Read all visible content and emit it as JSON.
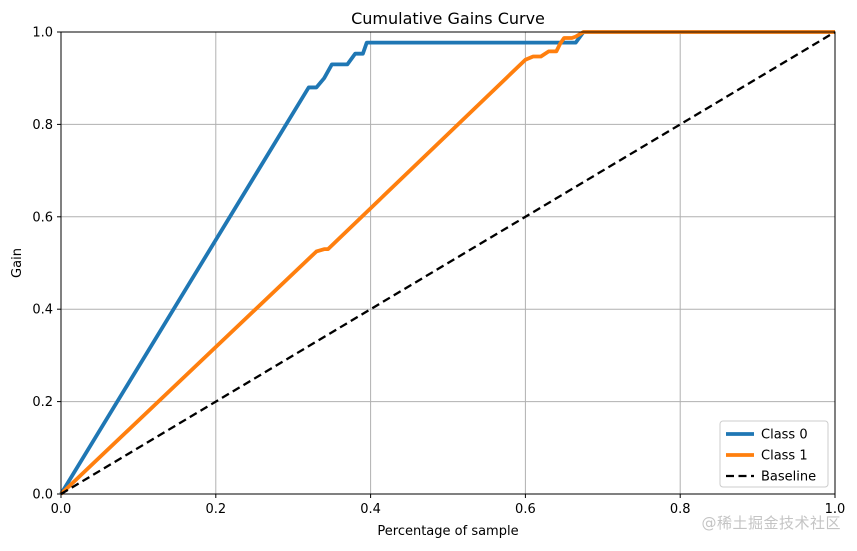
{
  "chart_data": {
    "type": "line",
    "title": "Cumulative Gains Curve",
    "xlabel": "Percentage of sample",
    "ylabel": "Gain",
    "xlim": [
      0.0,
      1.0
    ],
    "ylim": [
      0.0,
      1.0
    ],
    "xticks": [
      0.0,
      0.2,
      0.4,
      0.6,
      0.8,
      1.0
    ],
    "xtick_labels": [
      "0.0",
      "0.2",
      "0.4",
      "0.6",
      "0.8",
      "1.0"
    ],
    "yticks": [
      0.0,
      0.2,
      0.4,
      0.6,
      0.8,
      1.0
    ],
    "ytick_labels": [
      "0.0",
      "0.2",
      "0.4",
      "0.6",
      "0.8",
      "1.0"
    ],
    "grid": true,
    "legend_position": "bottom-right",
    "series": [
      {
        "name": "Class 0",
        "color": "#1f77b4",
        "style": "solid",
        "x": [
          0.0,
          0.32,
          0.33,
          0.34,
          0.35,
          0.37,
          0.38,
          0.39,
          0.395,
          0.4,
          0.665,
          0.675,
          0.69,
          1.0
        ],
        "y": [
          0.0,
          0.88,
          0.88,
          0.9,
          0.93,
          0.93,
          0.953,
          0.953,
          0.977,
          0.977,
          0.977,
          1.0,
          1.0,
          1.0
        ]
      },
      {
        "name": "Class 1",
        "color": "#ff7f0e",
        "style": "solid",
        "x": [
          0.0,
          0.33,
          0.34,
          0.345,
          0.6,
          0.61,
          0.62,
          0.63,
          0.64,
          0.645,
          0.65,
          0.66,
          0.665,
          0.675,
          1.0
        ],
        "y": [
          0.0,
          0.525,
          0.53,
          0.53,
          0.94,
          0.947,
          0.947,
          0.958,
          0.958,
          0.975,
          0.987,
          0.987,
          0.99,
          1.0,
          1.0
        ]
      },
      {
        "name": "Baseline",
        "color": "#000000",
        "style": "dashed",
        "x": [
          0.0,
          1.0
        ],
        "y": [
          0.0,
          1.0
        ]
      }
    ]
  },
  "watermark": "@稀土掘金技术社区"
}
